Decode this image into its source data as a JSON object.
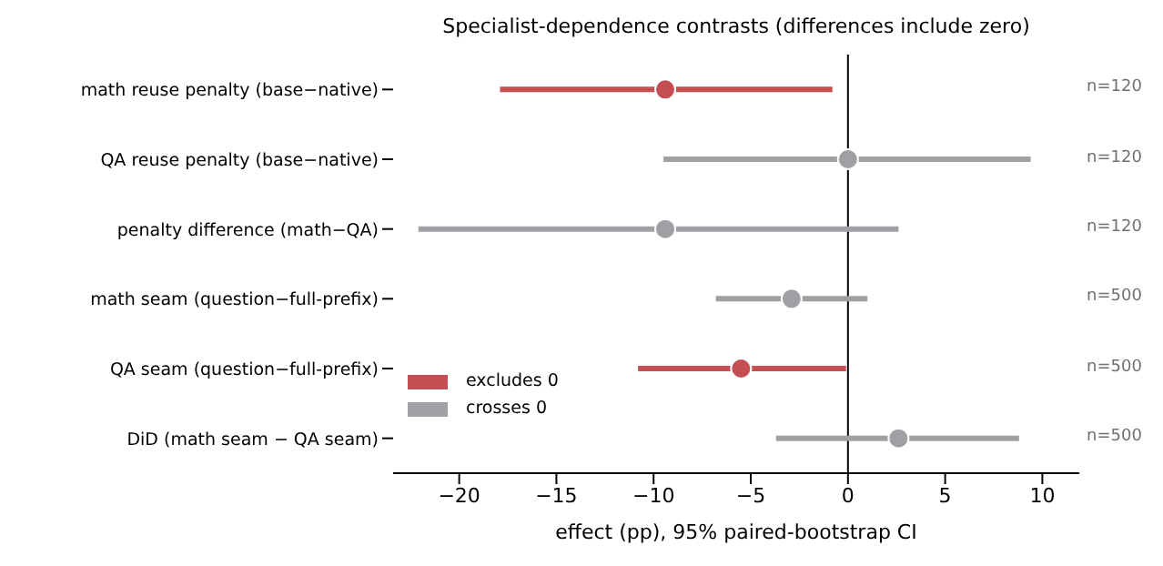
{
  "chart_data": {
    "type": "scatter",
    "orientation": "horizontal",
    "title": "Specialist-dependence contrasts (differences include zero)",
    "xlabel": "effect (pp), 95% paired-bootstrap CI",
    "categories": [
      "math reuse penalty (base−native)",
      "QA reuse penalty (base−native)",
      "penalty difference (math−QA)",
      "math seam (question−full-prefix)",
      "QA seam (question−full-prefix)",
      "DiD (math seam − QA seam)"
    ],
    "series": [
      {
        "name": "excludes 0",
        "color": "#c44e52",
        "values": [
          -9.4,
          null,
          null,
          null,
          -5.5,
          null
        ],
        "errors": [
          [
            -17.9,
            -0.8
          ],
          null,
          null,
          null,
          [
            -10.8,
            -0.1
          ],
          null
        ]
      },
      {
        "name": "crosses 0",
        "color": "#a0a0a4",
        "values": [
          null,
          0.0,
          -9.4,
          -2.9,
          null,
          2.6
        ],
        "errors": [
          null,
          [
            -9.5,
            9.4
          ],
          [
            -22.1,
            2.6
          ],
          [
            -6.8,
            1.0
          ],
          null,
          [
            -3.7,
            8.8
          ]
        ]
      }
    ],
    "xlim": [
      -23.4,
      11.9
    ],
    "xticks": [
      {
        "value": -20,
        "label": "−20"
      },
      {
        "value": -15,
        "label": "−15"
      },
      {
        "value": -10,
        "label": "−10"
      },
      {
        "value": -5,
        "label": "−5"
      },
      0,
      5,
      10
    ],
    "ref_lines": [
      {
        "axis": "x",
        "value": 0,
        "color": "#000000"
      }
    ],
    "annotations": [
      "n=120",
      "n=120",
      "n=120",
      "n=500",
      "n=500",
      "n=500"
    ],
    "legend": "bottom left",
    "marker": "circle",
    "grid": false
  }
}
